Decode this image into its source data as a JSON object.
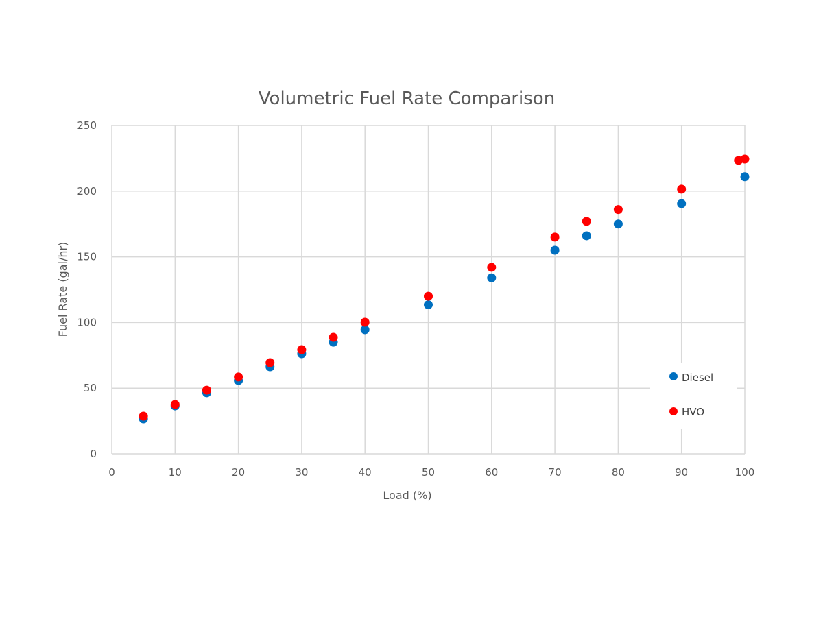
{
  "chart_data": {
    "type": "scatter",
    "title": "Volumetric Fuel Rate Comparison",
    "xlabel": "Load (%)",
    "ylabel": "Fuel Rate (gal/hr)",
    "xlim": [
      0,
      100
    ],
    "ylim": [
      0,
      250
    ],
    "xticks": [
      0,
      10,
      20,
      30,
      40,
      50,
      60,
      70,
      80,
      90,
      100
    ],
    "yticks": [
      0,
      50,
      100,
      150,
      200,
      250
    ],
    "grid": true,
    "legend_position": "right",
    "series": [
      {
        "name": "Diesel",
        "color": "#0070C0",
        "points": [
          [
            5,
            26.6
          ],
          [
            10,
            36.5
          ],
          [
            15,
            46.5
          ],
          [
            20,
            55.8
          ],
          [
            25,
            66.3
          ],
          [
            30,
            76.2
          ],
          [
            35,
            85
          ],
          [
            40,
            94.5
          ],
          [
            50,
            113.5
          ],
          [
            60,
            134
          ],
          [
            70,
            155
          ],
          [
            75,
            166
          ],
          [
            80,
            175
          ],
          [
            90,
            190.5
          ],
          [
            100,
            211
          ]
        ]
      },
      {
        "name": "HVO",
        "color": "#FF0000",
        "points": [
          [
            5,
            28.7
          ],
          [
            10,
            37.6
          ],
          [
            15,
            48.5
          ],
          [
            20,
            58.5
          ],
          [
            25,
            69.4
          ],
          [
            30,
            79.3
          ],
          [
            35,
            88.7
          ],
          [
            40,
            100.2
          ],
          [
            50,
            120
          ],
          [
            60,
            142
          ],
          [
            70,
            165
          ],
          [
            75,
            177
          ],
          [
            80,
            186
          ],
          [
            90,
            201.5
          ],
          [
            99,
            223.4
          ],
          [
            100,
            224.4
          ]
        ]
      }
    ]
  }
}
